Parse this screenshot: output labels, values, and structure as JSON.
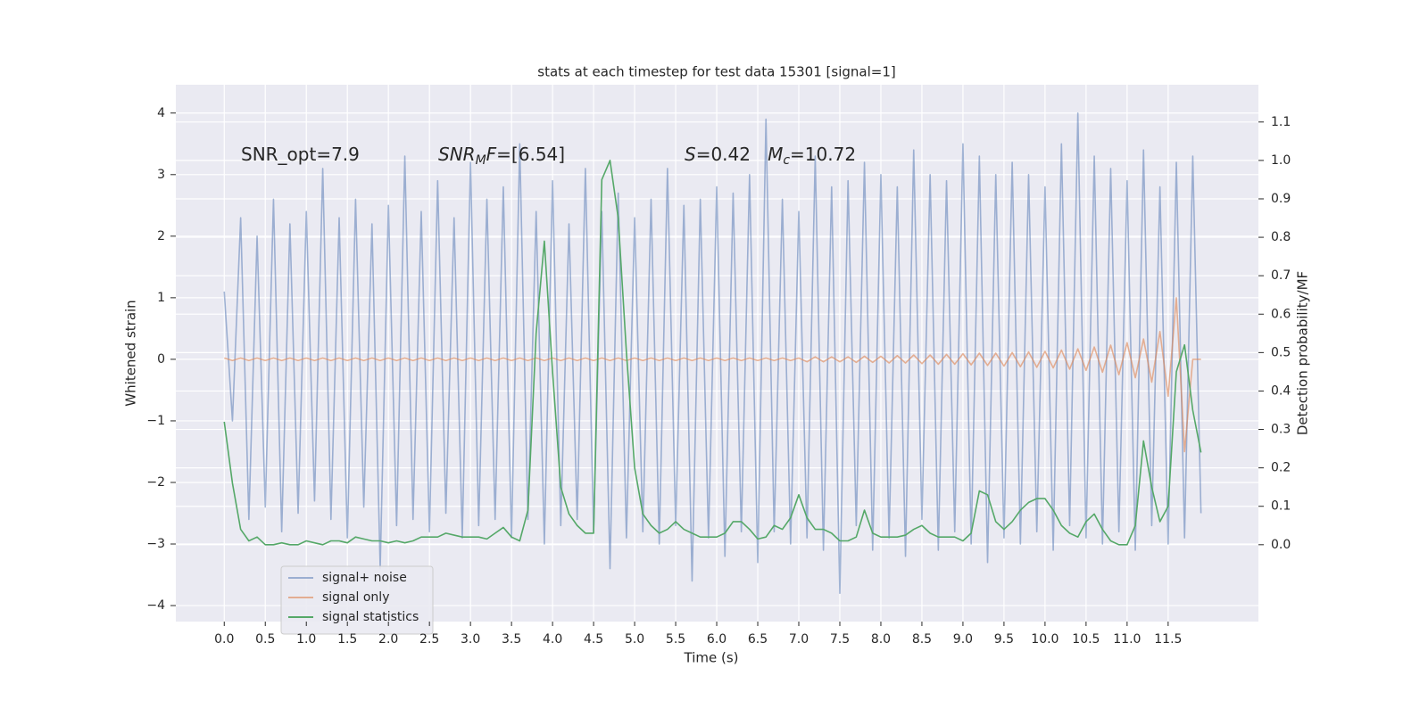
{
  "chart_data": {
    "type": "line",
    "title": "stats at each timestep for test data 15301 [signal=1]",
    "xlabel": "Time (s)",
    "ylabel": "Whitened strain",
    "y2label": "Detection probability/MF",
    "annotations": [
      [
        "SNR_opt=7.9"
      ],
      [
        "SNR",
        "M",
        "F",
        "=[6.54]"
      ],
      [
        "S",
        "=0.42   ",
        "M",
        "c",
        "=10.72"
      ]
    ],
    "x": [
      0,
      0.1,
      0.2,
      0.3,
      0.4,
      0.5,
      0.6,
      0.7,
      0.8,
      0.9,
      1,
      1.1,
      1.2,
      1.3,
      1.4,
      1.5,
      1.6,
      1.7,
      1.8,
      1.9,
      2,
      2.1,
      2.2,
      2.3,
      2.4,
      2.5,
      2.6,
      2.7,
      2.8,
      2.9,
      3,
      3.1,
      3.2,
      3.3,
      3.4,
      3.5,
      3.6,
      3.7,
      3.8,
      3.9,
      4,
      4.1,
      4.2,
      4.3,
      4.4,
      4.5,
      4.6,
      4.7,
      4.8,
      4.9,
      5,
      5.1,
      5.2,
      5.3,
      5.4,
      5.5,
      5.6,
      5.7,
      5.8,
      5.9,
      6,
      6.1,
      6.2,
      6.3,
      6.4,
      6.5,
      6.6,
      6.7,
      6.8,
      6.9,
      7,
      7.1,
      7.2,
      7.3,
      7.4,
      7.5,
      7.6,
      7.7,
      7.8,
      7.9,
      8,
      8.1,
      8.2,
      8.3,
      8.4,
      8.5,
      8.6,
      8.7,
      8.8,
      8.9,
      9,
      9.1,
      9.2,
      9.3,
      9.4,
      9.5,
      9.6,
      9.7,
      9.8,
      9.9,
      10,
      10.1,
      10.2,
      10.3,
      10.4,
      10.5,
      10.6,
      10.7,
      10.8,
      10.9,
      11,
      11.1,
      11.2,
      11.3,
      11.4,
      11.5,
      11.6,
      11.7,
      11.8,
      11.9
    ],
    "series": [
      {
        "name": "signal+ noise",
        "color": "#4c72b0",
        "opacity": 0.5,
        "values": [
          1.1,
          -1.0,
          2.3,
          -2.6,
          2.0,
          -2.4,
          2.6,
          -2.8,
          2.2,
          -2.5,
          2.4,
          -2.3,
          3.1,
          -2.6,
          2.3,
          -2.9,
          2.6,
          -2.4,
          2.2,
          -3.4,
          2.5,
          -2.7,
          3.3,
          -2.6,
          2.4,
          -2.8,
          2.9,
          -2.5,
          2.3,
          -2.9,
          3.2,
          -2.7,
          2.6,
          -2.6,
          2.8,
          -2.9,
          3.5,
          -2.6,
          2.4,
          -3.0,
          2.9,
          -2.7,
          2.2,
          -2.6,
          3.1,
          -2.8,
          2.4,
          -3.4,
          2.7,
          -2.9,
          2.3,
          -2.8,
          2.6,
          -3.0,
          3.1,
          -2.7,
          2.5,
          -3.6,
          2.6,
          -2.9,
          2.8,
          -3.2,
          2.7,
          -2.8,
          3.0,
          -3.3,
          3.9,
          -2.8,
          2.6,
          -3.0,
          2.4,
          -2.9,
          3.3,
          -3.1,
          2.8,
          -3.8,
          2.9,
          -2.7,
          3.2,
          -3.1,
          3.0,
          -2.9,
          2.8,
          -3.2,
          3.4,
          -2.6,
          3.0,
          -3.1,
          2.9,
          -2.8,
          3.5,
          -3.0,
          3.3,
          -3.3,
          3.0,
          -2.9,
          3.2,
          -3.0,
          3.0,
          -2.8,
          2.8,
          -3.1,
          3.5,
          -2.7,
          4.0,
          -2.9,
          3.3,
          -3.0,
          3.1,
          -2.8,
          2.9,
          -3.1,
          3.4,
          -2.7,
          2.8,
          -3.0,
          3.2,
          -2.9,
          3.3,
          -2.5
        ]
      },
      {
        "name": "signal only",
        "color": "#dd8452",
        "opacity": 0.6,
        "values": [
          0.02,
          -0.02,
          0.02,
          -0.02,
          0.02,
          -0.02,
          0.02,
          -0.02,
          0.02,
          -0.02,
          0.02,
          -0.02,
          0.02,
          -0.02,
          0.02,
          -0.02,
          0.02,
          -0.02,
          0.02,
          -0.02,
          0.02,
          -0.02,
          0.02,
          -0.02,
          0.02,
          -0.02,
          0.02,
          -0.02,
          0.02,
          -0.02,
          0.02,
          -0.02,
          0.02,
          -0.02,
          0.02,
          -0.02,
          0.02,
          -0.02,
          0.02,
          -0.02,
          0.02,
          -0.02,
          0.02,
          -0.02,
          0.02,
          -0.02,
          0.02,
          -0.02,
          0.02,
          -0.02,
          0.02,
          -0.02,
          0.02,
          -0.02,
          0.02,
          -0.02,
          0.02,
          -0.02,
          0.02,
          -0.02,
          0.02,
          -0.02,
          0.02,
          -0.02,
          0.02,
          -0.02,
          0.02,
          -0.02,
          0.02,
          -0.02,
          0.02,
          -0.04,
          0.04,
          -0.04,
          0.04,
          -0.04,
          0.04,
          -0.05,
          0.05,
          -0.05,
          0.05,
          -0.06,
          0.06,
          -0.06,
          0.07,
          -0.07,
          0.07,
          -0.08,
          0.08,
          -0.08,
          0.09,
          -0.09,
          0.1,
          -0.1,
          0.1,
          -0.11,
          0.11,
          -0.12,
          0.12,
          -0.13,
          0.13,
          -0.14,
          0.15,
          -0.16,
          0.17,
          -0.18,
          0.2,
          -0.21,
          0.23,
          -0.25,
          0.27,
          -0.3,
          0.33,
          -0.37,
          0.45,
          -0.6,
          1.0,
          -1.5,
          0.0,
          0.0
        ]
      },
      {
        "name": "signal statistics",
        "color": "#55a868",
        "opacity": 1,
        "axis": "y2",
        "values": [
          0.32,
          0.16,
          0.04,
          0.01,
          0.02,
          0.0,
          0.0,
          0.005,
          0.0,
          0.0,
          0.01,
          0.005,
          0.0,
          0.01,
          0.01,
          0.005,
          0.02,
          0.015,
          0.01,
          0.01,
          0.005,
          0.01,
          0.005,
          0.01,
          0.02,
          0.02,
          0.02,
          0.03,
          0.025,
          0.02,
          0.02,
          0.02,
          0.015,
          0.03,
          0.045,
          0.02,
          0.01,
          0.09,
          0.55,
          0.79,
          0.45,
          0.15,
          0.08,
          0.05,
          0.03,
          0.03,
          0.95,
          1.0,
          0.85,
          0.5,
          0.2,
          0.08,
          0.05,
          0.03,
          0.04,
          0.06,
          0.04,
          0.03,
          0.02,
          0.02,
          0.02,
          0.03,
          0.06,
          0.06,
          0.04,
          0.015,
          0.02,
          0.05,
          0.04,
          0.07,
          0.13,
          0.07,
          0.04,
          0.04,
          0.03,
          0.01,
          0.01,
          0.02,
          0.09,
          0.03,
          0.02,
          0.02,
          0.02,
          0.025,
          0.04,
          0.05,
          0.03,
          0.02,
          0.02,
          0.02,
          0.01,
          0.03,
          0.14,
          0.13,
          0.06,
          0.04,
          0.06,
          0.09,
          0.11,
          0.12,
          0.12,
          0.09,
          0.05,
          0.03,
          0.02,
          0.06,
          0.08,
          0.04,
          0.01,
          0.0,
          0.0,
          0.05,
          0.27,
          0.15,
          0.06,
          0.1,
          0.45,
          0.52,
          0.35,
          0.24
        ]
      }
    ],
    "xlim": [
      -0.59,
      12.6
    ],
    "ylim": [
      -4.26,
      4.46
    ],
    "y2lim": [
      -0.2,
      1.197
    ],
    "xticks": [
      {
        "value": 0,
        "label": "0.0"
      },
      0.5,
      {
        "value": 1,
        "label": "1.0"
      },
      1.5,
      {
        "value": 2,
        "label": "2.0"
      },
      2.5,
      {
        "value": 3,
        "label": "3.0"
      },
      3.5,
      {
        "value": 4,
        "label": "4.0"
      },
      4.5,
      {
        "value": 5,
        "label": "5.0"
      },
      5.5,
      {
        "value": 6,
        "label": "6.0"
      },
      6.5,
      {
        "value": 7,
        "label": "7.0"
      },
      7.5,
      {
        "value": 8,
        "label": "8.0"
      },
      8.5,
      {
        "value": 9,
        "label": "9.0"
      },
      9.5,
      {
        "value": 10,
        "label": "10.0"
      },
      10.5,
      {
        "value": 11,
        "label": "11.0"
      },
      11.5
    ],
    "yticks": [
      {
        "value": -4,
        "label": "−4"
      },
      {
        "value": -3,
        "label": "−3"
      },
      {
        "value": -2,
        "label": "−2"
      },
      {
        "value": -1,
        "label": "−1"
      },
      0,
      1,
      2,
      3,
      4
    ],
    "y2ticks": [
      {
        "value": 0,
        "label": "0.0"
      },
      0.1,
      0.2,
      0.3,
      0.4,
      0.5,
      0.6,
      0.7,
      0.8,
      0.9,
      {
        "value": 1,
        "label": "1.0"
      },
      1.1
    ],
    "grid": true,
    "legend": "lower left"
  }
}
